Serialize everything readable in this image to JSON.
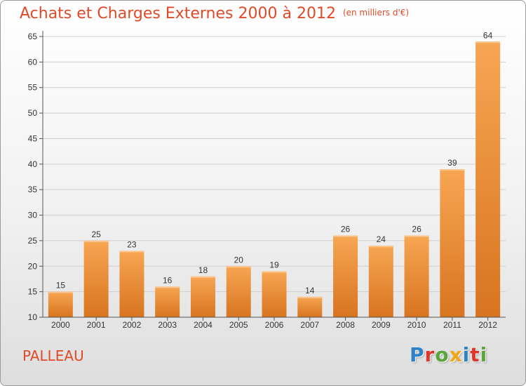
{
  "header": {
    "title": "Achats et Charges Externes 2000 à 2012",
    "unit": "(en milliers d'€)"
  },
  "footer": {
    "town": "PALLEAU",
    "brand_letters": [
      {
        "ch": "P",
        "color": "#2f82c5"
      },
      {
        "ch": "r",
        "color": "#e0342e"
      },
      {
        "ch": "o",
        "color": "#5aa63b"
      },
      {
        "ch": "x",
        "color": "#f2a71a"
      },
      {
        "ch": "i",
        "color": "#2f82c5"
      },
      {
        "ch": "t",
        "color": "#e0342e"
      },
      {
        "ch": "i",
        "color": "#5aa63b"
      }
    ]
  },
  "colors": {
    "title": "#e04a28",
    "bar_top": "#f7a653",
    "bar_bottom": "#d8741f",
    "grid": "#cfcfcf",
    "axis": "#555555"
  },
  "chart_data": {
    "type": "bar",
    "title": "Achats et Charges Externes 2000 à 2012",
    "subtitle": "(en milliers d'€)",
    "categories": [
      "2000",
      "2001",
      "2002",
      "2003",
      "2004",
      "2005",
      "2006",
      "2007",
      "2008",
      "2009",
      "2010",
      "2011",
      "2012"
    ],
    "values": [
      15,
      25,
      23,
      16,
      18,
      20,
      19,
      14,
      26,
      24,
      26,
      39,
      64
    ],
    "ylim": [
      10,
      65
    ],
    "yticks": [
      10,
      15,
      20,
      25,
      30,
      35,
      40,
      45,
      50,
      55,
      60,
      65
    ],
    "grid": true,
    "data_labels": true
  }
}
